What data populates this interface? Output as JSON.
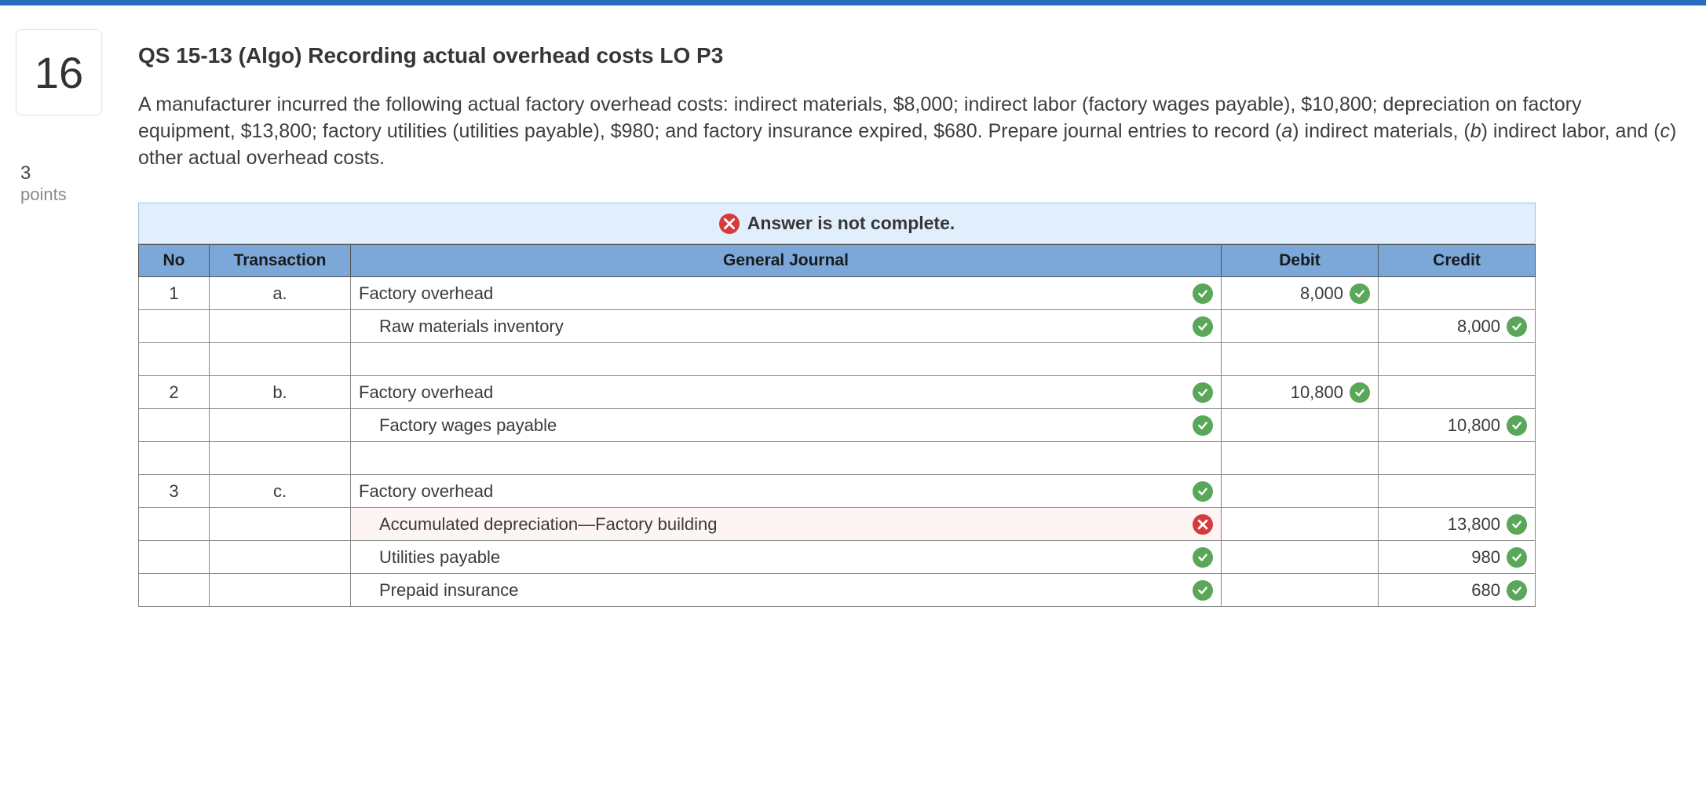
{
  "accent_bar_color": "#2a6cc0",
  "question_number": "16",
  "points_value": "3",
  "points_label": "points",
  "title": "QS 15-13 (Algo) Recording actual overhead costs LO P3",
  "prompt_p1": "A manufacturer incurred the following actual factory overhead costs: indirect materials, $8,000; indirect labor (factory wages payable), $10,800; depreciation on factory equipment, $13,800; factory utilities (utilities payable), $980; and factory insurance expired, $680. Prepare journal entries to record (",
  "prompt_a": "a",
  "prompt_p2": ") indirect materials, (",
  "prompt_b": "b",
  "prompt_p3": ") indirect labor, and (",
  "prompt_c": "c",
  "prompt_p4": ") other actual overhead costs.",
  "banner_text": "Answer is not complete.",
  "columns": {
    "no": "No",
    "txn": "Transaction",
    "gj": "General Journal",
    "debit": "Debit",
    "credit": "Credit"
  },
  "rows": [
    {
      "no": "1",
      "txn": "a.",
      "account": "Factory overhead",
      "indent": false,
      "acct_status": "correct",
      "debit": "8,000",
      "debit_status": "correct",
      "credit": "",
      "credit_status": ""
    },
    {
      "no": "",
      "txn": "",
      "account": "Raw materials inventory",
      "indent": true,
      "acct_status": "correct",
      "debit": "",
      "debit_status": "",
      "credit": "8,000",
      "credit_status": "correct"
    },
    {
      "spacer": true
    },
    {
      "no": "2",
      "txn": "b.",
      "account": "Factory overhead",
      "indent": false,
      "acct_status": "correct",
      "debit": "10,800",
      "debit_status": "correct",
      "credit": "",
      "credit_status": ""
    },
    {
      "no": "",
      "txn": "",
      "account": "Factory wages payable",
      "indent": true,
      "acct_status": "correct",
      "debit": "",
      "debit_status": "",
      "credit": "10,800",
      "credit_status": "correct"
    },
    {
      "spacer": true
    },
    {
      "no": "3",
      "txn": "c.",
      "account": "Factory overhead",
      "indent": false,
      "acct_status": "correct",
      "debit": "",
      "debit_status": "",
      "credit": "",
      "credit_status": ""
    },
    {
      "no": "",
      "txn": "",
      "account": "Accumulated depreciation—Factory building",
      "indent": true,
      "acct_status": "wrong",
      "debit": "",
      "debit_status": "",
      "credit": "13,800",
      "credit_status": "correct"
    },
    {
      "no": "",
      "txn": "",
      "account": "Utilities payable",
      "indent": true,
      "acct_status": "correct",
      "debit": "",
      "debit_status": "",
      "credit": "980",
      "credit_status": "correct"
    },
    {
      "no": "",
      "txn": "",
      "account": "Prepaid insurance",
      "indent": true,
      "acct_status": "correct",
      "debit": "",
      "debit_status": "",
      "credit": "680",
      "credit_status": "correct"
    }
  ],
  "colors": {
    "header_bg": "#7ba7d9",
    "banner_bg": "#e1eefb",
    "banner_border": "#9cc4e4",
    "correct": "#5aa75a",
    "wrong": "#d73a3a"
  }
}
